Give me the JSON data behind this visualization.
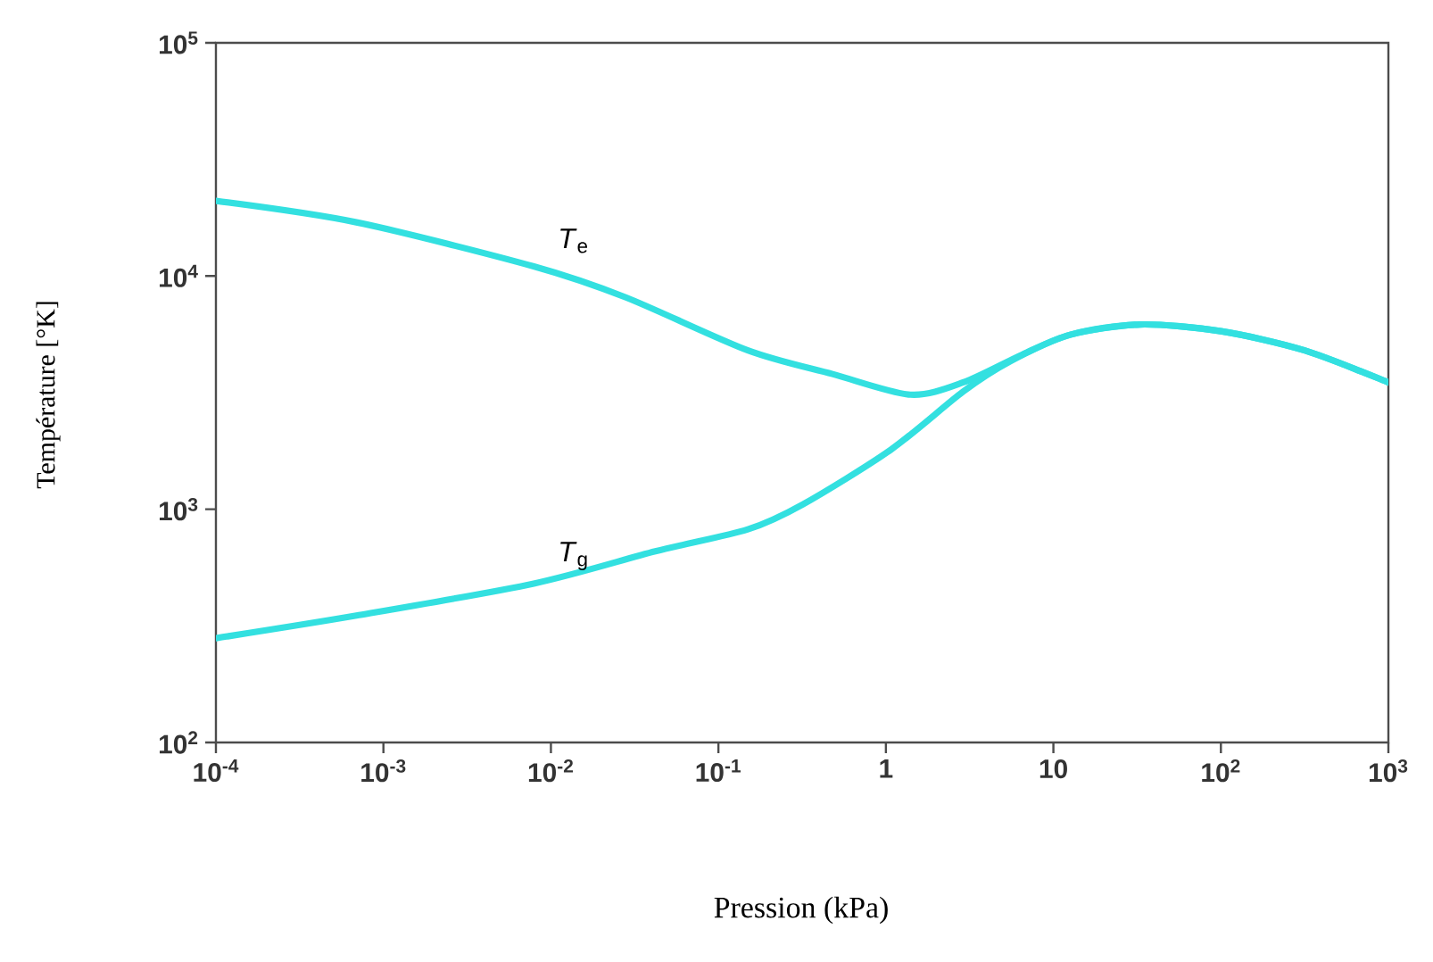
{
  "chart_data": {
    "type": "line",
    "xlabel": "Pression (kPa)",
    "ylabel": "Température [°K]",
    "log": "xy",
    "xlim": [
      0.0001,
      1000
    ],
    "ylim": [
      100,
      100000
    ],
    "xticks": [
      {
        "value": 0.0001,
        "label": "10$^{-4}$"
      },
      {
        "value": 0.001,
        "label": "10$^{-3}$"
      },
      {
        "value": 0.01,
        "label": "10$^{-2}$"
      },
      {
        "value": 0.1,
        "label": "10$^{-1}$"
      },
      1,
      10,
      {
        "value": 100,
        "label": "10$^{2}$"
      },
      {
        "value": 1000,
        "label": "10$^{3}$"
      }
    ],
    "yticks": [
      {
        "value": 100,
        "label": "10$^{2}$"
      },
      {
        "value": 1000,
        "label": "10$^{3}$"
      },
      {
        "value": 10000,
        "label": "10$^{4}$"
      },
      {
        "value": 100000,
        "label": "10$^{5}$"
      }
    ],
    "series": [
      {
        "name": "*T*$_{e}$",
        "color": "#33e0e0",
        "x": [
          0.0001,
          0.00069,
          0.0079,
          0.028,
          0.15,
          0.48,
          1.4,
          2.9,
          6.5,
          12.6,
          33,
          100,
          316,
          1000
        ],
        "values": [
          21000,
          17000,
          11000,
          8100,
          4800,
          3800,
          3100,
          3500,
          4600,
          5600,
          6200,
          5800,
          4800,
          3500
        ]
      },
      {
        "name": "*T*$_{g}$",
        "color": "#33e0e0",
        "x": [
          0.0001,
          0.00069,
          0.0079,
          0.042,
          0.15,
          0.32,
          1.07,
          2.9,
          5.5,
          12.6,
          33,
          100,
          316,
          1000
        ],
        "values": [
          280,
          350,
          480,
          660,
          820,
          1050,
          1800,
          3200,
          4300,
          5600,
          6200,
          5800,
          4800,
          3500
        ]
      }
    ]
  }
}
